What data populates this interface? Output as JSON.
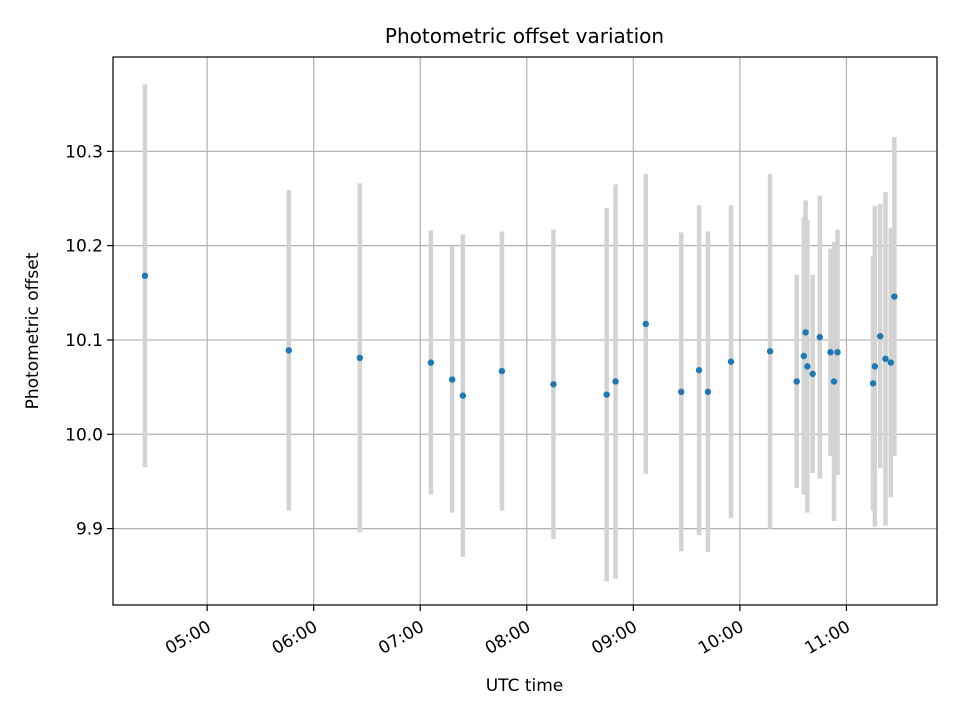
{
  "chart_data": {
    "type": "scatter",
    "title": "Photometric offset variation",
    "xlabel": "UTC time",
    "ylabel": "Photometric offset",
    "x_tick_labels": [
      "05:00",
      "06:00",
      "07:00",
      "08:00",
      "09:00",
      "10:00",
      "11:00"
    ],
    "x_tick_hours": [
      5,
      6,
      7,
      8,
      9,
      10,
      11
    ],
    "y_tick_labels": [
      "9.9",
      "10.0",
      "10.1",
      "10.2",
      "10.3"
    ],
    "y_tick_values": [
      9.9,
      10.0,
      10.1,
      10.2,
      10.3
    ],
    "xlim": [
      "04:07",
      "11:51"
    ],
    "ylim": [
      9.819,
      10.4
    ],
    "grid": true,
    "point_color": "#1f77b4",
    "errorbar_color": "#d3d3d3",
    "points": [
      {
        "time": "04:25",
        "y": 10.168,
        "err": 0.203
      },
      {
        "time": "05:46",
        "y": 10.089,
        "err": 0.17
      },
      {
        "time": "06:26",
        "y": 10.081,
        "err": 0.185
      },
      {
        "time": "07:06",
        "y": 10.076,
        "err": 0.14
      },
      {
        "time": "07:18",
        "y": 10.058,
        "err": 0.141
      },
      {
        "time": "07:24",
        "y": 10.041,
        "err": 0.171
      },
      {
        "time": "07:46",
        "y": 10.067,
        "err": 0.148
      },
      {
        "time": "08:15",
        "y": 10.053,
        "err": 0.164
      },
      {
        "time": "08:45",
        "y": 10.042,
        "err": 0.198
      },
      {
        "time": "08:50",
        "y": 10.056,
        "err": 0.209
      },
      {
        "time": "09:07",
        "y": 10.117,
        "err": 0.159
      },
      {
        "time": "09:27",
        "y": 10.045,
        "err": 0.169
      },
      {
        "time": "09:37",
        "y": 10.068,
        "err": 0.175
      },
      {
        "time": "09:42",
        "y": 10.045,
        "err": 0.17
      },
      {
        "time": "09:55",
        "y": 10.077,
        "err": 0.166
      },
      {
        "time": "10:17",
        "y": 10.088,
        "err": 0.188
      },
      {
        "time": "10:32",
        "y": 10.056,
        "err": 0.113
      },
      {
        "time": "10:36",
        "y": 10.083,
        "err": 0.147
      },
      {
        "time": "10:37",
        "y": 10.108,
        "err": 0.14
      },
      {
        "time": "10:38",
        "y": 10.072,
        "err": 0.155
      },
      {
        "time": "10:41",
        "y": 10.064,
        "err": 0.105
      },
      {
        "time": "10:45",
        "y": 10.103,
        "err": 0.15
      },
      {
        "time": "10:51",
        "y": 10.087,
        "err": 0.11
      },
      {
        "time": "10:53",
        "y": 10.056,
        "err": 0.148
      },
      {
        "time": "10:55",
        "y": 10.087,
        "err": 0.13
      },
      {
        "time": "11:15",
        "y": 10.054,
        "err": 0.135
      },
      {
        "time": "11:16",
        "y": 10.072,
        "err": 0.17
      },
      {
        "time": "11:19",
        "y": 10.104,
        "err": 0.14
      },
      {
        "time": "11:22",
        "y": 10.08,
        "err": 0.177
      },
      {
        "time": "11:25",
        "y": 10.076,
        "err": 0.143
      },
      {
        "time": "11:27",
        "y": 10.146,
        "err": 0.169
      }
    ]
  }
}
